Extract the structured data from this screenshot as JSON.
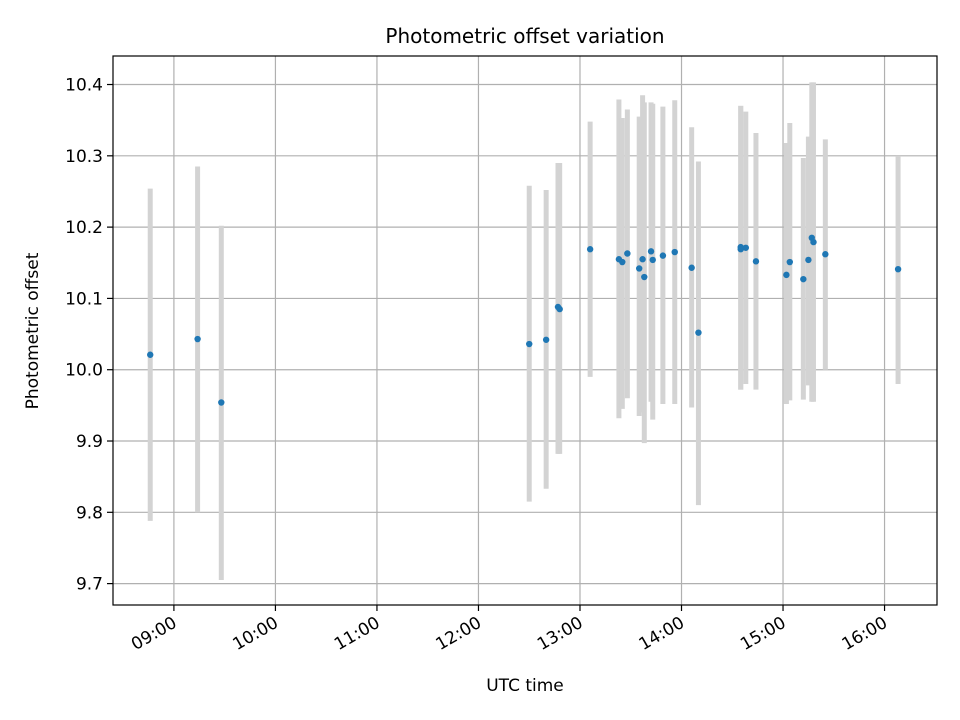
{
  "chart_data": {
    "type": "scatter",
    "title": "Photometric offset variation",
    "xlabel": "UTC time",
    "ylabel": "Photometric offset",
    "xlim": [
      "08:24",
      "16:31"
    ],
    "ylim": [
      9.67,
      10.44
    ],
    "grid": true,
    "x_ticks": [
      "09:00",
      "10:00",
      "11:00",
      "12:00",
      "13:00",
      "14:00",
      "15:00",
      "16:00"
    ],
    "y_ticks": [
      "9.7",
      "9.8",
      "9.9",
      "10.0",
      "10.1",
      "10.2",
      "10.3",
      "10.4"
    ],
    "colors": {
      "point": "#1f77b4",
      "errorbar": "#d3d3d3",
      "grid": "#b0b0b0"
    },
    "points": [
      {
        "x": "08:46",
        "y": 10.021,
        "yerr_low": 9.788,
        "yerr_high": 10.254
      },
      {
        "x": "09:14",
        "y": 10.043,
        "yerr_low": 9.8,
        "yerr_high": 10.285
      },
      {
        "x": "09:28",
        "y": 9.954,
        "yerr_low": 9.705,
        "yerr_high": 10.202
      },
      {
        "x": "12:30",
        "y": 10.036,
        "yerr_low": 9.815,
        "yerr_high": 10.258
      },
      {
        "x": "12:40",
        "y": 10.042,
        "yerr_low": 9.833,
        "yerr_high": 10.252
      },
      {
        "x": "12:47",
        "y": 10.088,
        "yerr_low": 9.882,
        "yerr_high": 10.29
      },
      {
        "x": "12:48",
        "y": 10.085,
        "yerr_low": 9.882,
        "yerr_high": 10.29
      },
      {
        "x": "13:06",
        "y": 10.169,
        "yerr_low": 9.99,
        "yerr_high": 10.348
      },
      {
        "x": "13:23",
        "y": 10.155,
        "yerr_low": 9.932,
        "yerr_high": 10.379
      },
      {
        "x": "13:25",
        "y": 10.151,
        "yerr_low": 9.945,
        "yerr_high": 10.353
      },
      {
        "x": "13:28",
        "y": 10.163,
        "yerr_low": 9.96,
        "yerr_high": 10.365
      },
      {
        "x": "13:35",
        "y": 10.142,
        "yerr_low": 9.935,
        "yerr_high": 10.355
      },
      {
        "x": "13:37",
        "y": 10.155,
        "yerr_low": 9.94,
        "yerr_high": 10.385
      },
      {
        "x": "13:38",
        "y": 10.13,
        "yerr_low": 9.897,
        "yerr_high": 10.375
      },
      {
        "x": "13:42",
        "y": 10.166,
        "yerr_low": 9.955,
        "yerr_high": 10.375
      },
      {
        "x": "13:43",
        "y": 10.154,
        "yerr_low": 9.93,
        "yerr_high": 10.373
      },
      {
        "x": "13:49",
        "y": 10.16,
        "yerr_low": 9.952,
        "yerr_high": 10.369
      },
      {
        "x": "13:56",
        "y": 10.165,
        "yerr_low": 9.952,
        "yerr_high": 10.378
      },
      {
        "x": "14:06",
        "y": 10.143,
        "yerr_low": 9.947,
        "yerr_high": 10.34
      },
      {
        "x": "14:10",
        "y": 10.052,
        "yerr_low": 9.81,
        "yerr_high": 10.292
      },
      {
        "x": "14:35",
        "y": 10.172,
        "yerr_low": 9.972,
        "yerr_high": 10.37
      },
      {
        "x": "14:35",
        "y": 10.169,
        "yerr_low": 9.972,
        "yerr_high": 10.37
      },
      {
        "x": "14:38",
        "y": 10.171,
        "yerr_low": 9.98,
        "yerr_high": 10.362
      },
      {
        "x": "14:44",
        "y": 10.152,
        "yerr_low": 9.972,
        "yerr_high": 10.332
      },
      {
        "x": "15:02",
        "y": 10.133,
        "yerr_low": 9.952,
        "yerr_high": 10.318
      },
      {
        "x": "15:04",
        "y": 10.151,
        "yerr_low": 9.957,
        "yerr_high": 10.346
      },
      {
        "x": "15:12",
        "y": 10.127,
        "yerr_low": 9.958,
        "yerr_high": 10.297
      },
      {
        "x": "15:15",
        "y": 10.154,
        "yerr_low": 9.978,
        "yerr_high": 10.327
      },
      {
        "x": "15:17",
        "y": 10.185,
        "yerr_low": 9.955,
        "yerr_high": 10.403
      },
      {
        "x": "15:18",
        "y": 10.179,
        "yerr_low": 9.955,
        "yerr_high": 10.403
      },
      {
        "x": "15:25",
        "y": 10.162,
        "yerr_low": 10.0,
        "yerr_high": 10.323
      },
      {
        "x": "16:08",
        "y": 10.141,
        "yerr_low": 9.98,
        "yerr_high": 10.3
      }
    ]
  }
}
